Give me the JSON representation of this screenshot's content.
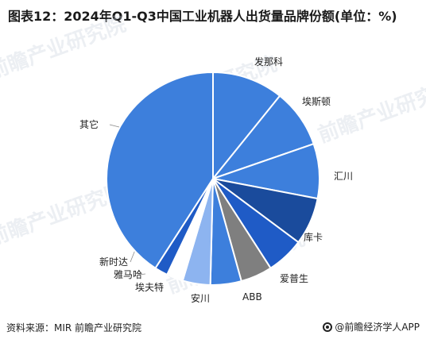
{
  "title": "图表12：2024年Q1-Q3中国工业机器人出货量品牌份额(单位：%)",
  "source": "资料来源：MIR 前瞻产业研究院",
  "brand": "@前瞻经济学人APP",
  "watermark": "前瞻产业研究院",
  "chart_data": {
    "type": "pie",
    "title": "图表12：2024年Q1-Q3中国工业机器人出货量品牌份额(单位：%)",
    "slices": [
      {
        "name": "发那科",
        "value": 10.8,
        "color": "#3d7fdc"
      },
      {
        "name": "埃斯顿",
        "value": 8.9,
        "color": "#3d7fdc"
      },
      {
        "name": "汇川",
        "value": 8.3,
        "color": "#3d7fdc"
      },
      {
        "name": "库卡",
        "value": 7.2,
        "color": "#1a4b9c"
      },
      {
        "name": "爱普生",
        "value": 5.7,
        "color": "#1f5bc6"
      },
      {
        "name": "ABB",
        "value": 4.8,
        "color": "#7f7f7f"
      },
      {
        "name": "安川",
        "value": 4.7,
        "color": "#3d7fdc"
      },
      {
        "name": "埃夫特",
        "value": 4.2,
        "color": "#8db4f0"
      },
      {
        "name": "雅马哈",
        "value": 2.5,
        "color": "#ffffff"
      },
      {
        "name": "新时达",
        "value": 2.0,
        "color": "#1f5bc6"
      },
      {
        "name": "其它",
        "value": 40.9,
        "color": "#3d7fdc"
      }
    ]
  }
}
